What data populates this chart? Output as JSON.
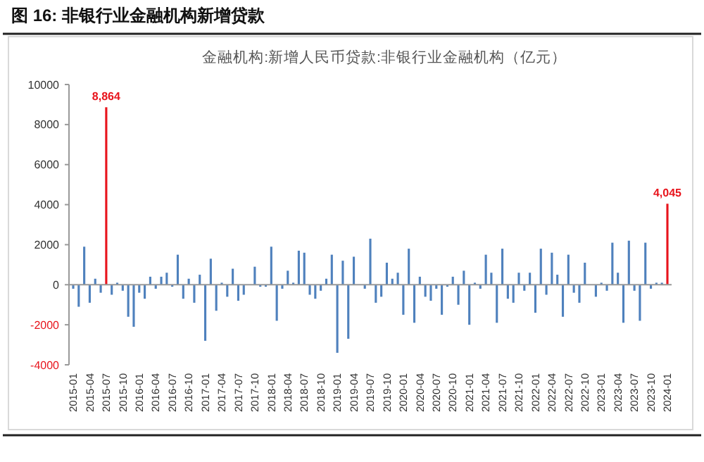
{
  "chart_data": {
    "type": "bar",
    "title": "图 16: 非银行业金融机构新增贷款",
    "subtitle": "金融机构:新增人民币贷款:非银行业金融机构（亿元）",
    "categories": [
      "2015-01",
      null,
      null,
      "2015-04",
      null,
      null,
      "2015-07",
      null,
      null,
      "2015-10",
      null,
      null,
      "2016-01",
      null,
      null,
      "2016-04",
      null,
      null,
      "2016-07",
      null,
      null,
      "2016-10",
      null,
      null,
      "2017-01",
      null,
      null,
      "2017-04",
      null,
      null,
      "2017-07",
      null,
      null,
      "2017-10",
      null,
      null,
      "2018-01",
      null,
      null,
      "2018-04",
      null,
      null,
      "2018-07",
      null,
      null,
      "2018-10",
      null,
      null,
      "2019-01",
      null,
      null,
      "2019-04",
      null,
      null,
      "2019-07",
      null,
      null,
      "2019-10",
      null,
      null,
      "2020-01",
      null,
      null,
      "2020-04",
      null,
      null,
      "2020-07",
      null,
      null,
      "2020-10",
      null,
      null,
      "2021-01",
      null,
      null,
      "2021-04",
      null,
      null,
      "2021-07",
      null,
      null,
      "2021-10",
      null,
      null,
      "2022-01",
      null,
      null,
      "2022-04",
      null,
      null,
      "2022-07",
      null,
      null,
      "2022-10",
      null,
      null,
      "2023-01",
      null,
      null,
      "2023-04",
      null,
      null,
      "2023-07",
      null,
      null,
      "2023-10",
      null,
      null,
      "2024-01"
    ],
    "values": [
      -200,
      -1100,
      1900,
      -900,
      300,
      -400,
      8864,
      -500,
      100,
      -300,
      -1600,
      -2100,
      -400,
      -700,
      400,
      -200,
      400,
      600,
      -100,
      1500,
      -700,
      300,
      -900,
      500,
      -2800,
      1300,
      -1300,
      100,
      -600,
      800,
      -800,
      -500,
      0,
      900,
      -100,
      -100,
      1900,
      -1800,
      -200,
      700,
      100,
      1700,
      1600,
      -500,
      -700,
      -300,
      300,
      1500,
      -3400,
      1200,
      -2700,
      1400,
      0,
      -200,
      2300,
      -900,
      -600,
      1100,
      300,
      600,
      -1500,
      1800,
      -1900,
      400,
      -600,
      -800,
      -200,
      -1500,
      -100,
      400,
      -1000,
      700,
      -2000,
      100,
      -200,
      1500,
      600,
      -1900,
      1800,
      -700,
      -900,
      600,
      -300,
      600,
      -1400,
      1800,
      -500,
      1600,
      500,
      -1600,
      1500,
      -400,
      -900,
      1100,
      0,
      -600,
      100,
      -300,
      2100,
      600,
      -1900,
      2200,
      -300,
      -1800,
      2100,
      -200,
      100,
      100,
      4045
    ],
    "colors": [
      "#4f81bd",
      "#4f81bd",
      "#4f81bd",
      "#4f81bd",
      "#4f81bd",
      "#4f81bd",
      "#e8141c",
      "#4f81bd",
      "#4f81bd",
      "#4f81bd",
      "#4f81bd",
      "#4f81bd",
      "#4f81bd",
      "#4f81bd",
      "#4f81bd",
      "#4f81bd",
      "#4f81bd",
      "#4f81bd",
      "#4f81bd",
      "#4f81bd",
      "#4f81bd",
      "#4f81bd",
      "#4f81bd",
      "#4f81bd",
      "#4f81bd",
      "#4f81bd",
      "#4f81bd",
      "#4f81bd",
      "#4f81bd",
      "#4f81bd",
      "#4f81bd",
      "#4f81bd",
      "#4f81bd",
      "#4f81bd",
      "#4f81bd",
      "#4f81bd",
      "#4f81bd",
      "#4f81bd",
      "#4f81bd",
      "#4f81bd",
      "#4f81bd",
      "#4f81bd",
      "#4f81bd",
      "#4f81bd",
      "#4f81bd",
      "#4f81bd",
      "#4f81bd",
      "#4f81bd",
      "#4f81bd",
      "#4f81bd",
      "#4f81bd",
      "#4f81bd",
      "#4f81bd",
      "#4f81bd",
      "#4f81bd",
      "#4f81bd",
      "#4f81bd",
      "#4f81bd",
      "#4f81bd",
      "#4f81bd",
      "#4f81bd",
      "#4f81bd",
      "#4f81bd",
      "#4f81bd",
      "#4f81bd",
      "#4f81bd",
      "#4f81bd",
      "#4f81bd",
      "#4f81bd",
      "#4f81bd",
      "#4f81bd",
      "#4f81bd",
      "#4f81bd",
      "#4f81bd",
      "#4f81bd",
      "#4f81bd",
      "#4f81bd",
      "#4f81bd",
      "#4f81bd",
      "#4f81bd",
      "#4f81bd",
      "#4f81bd",
      "#4f81bd",
      "#4f81bd",
      "#4f81bd",
      "#4f81bd",
      "#4f81bd",
      "#4f81bd",
      "#4f81bd",
      "#4f81bd",
      "#4f81bd",
      "#4f81bd",
      "#4f81bd",
      "#4f81bd",
      "#4f81bd",
      "#4f81bd",
      "#4f81bd",
      "#4f81bd",
      "#4f81bd",
      "#4f81bd",
      "#4f81bd",
      "#4f81bd",
      "#4f81bd",
      "#4f81bd",
      "#4f81bd",
      "#4f81bd",
      "#4f81bd",
      "#4f81bd",
      "#e8141c"
    ],
    "value_labels": [
      null,
      null,
      null,
      null,
      null,
      null,
      "8,864",
      null,
      null,
      null,
      null,
      null,
      null,
      null,
      null,
      null,
      null,
      null,
      null,
      null,
      null,
      null,
      null,
      null,
      null,
      null,
      null,
      null,
      null,
      null,
      null,
      null,
      null,
      null,
      null,
      null,
      null,
      null,
      null,
      null,
      null,
      null,
      null,
      null,
      null,
      null,
      null,
      null,
      null,
      null,
      null,
      null,
      null,
      null,
      null,
      null,
      null,
      null,
      null,
      null,
      null,
      null,
      null,
      null,
      null,
      null,
      null,
      null,
      null,
      null,
      null,
      null,
      null,
      null,
      null,
      null,
      null,
      null,
      null,
      null,
      null,
      null,
      null,
      null,
      null,
      null,
      null,
      null,
      null,
      null,
      null,
      null,
      null,
      null,
      null,
      null,
      null,
      null,
      null,
      null,
      null,
      null,
      null,
      null,
      null,
      null,
      null,
      null,
      "4,045"
    ],
    "ylim": [
      -4000,
      10000
    ],
    "yticks": [
      -4000,
      -2000,
      0,
      2000,
      4000,
      6000,
      8000,
      10000
    ]
  }
}
